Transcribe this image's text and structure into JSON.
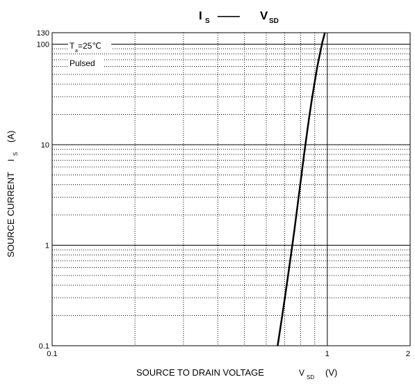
{
  "chart_data": {
    "type": "line",
    "title": {
      "left_main": "I",
      "left_sub": "S",
      "dash": "——",
      "right_main": "V",
      "right_sub": "SD"
    },
    "xlabel": {
      "text": "SOURCE TO DRAIN VOLTAGE",
      "sym": "V",
      "sub": "SD",
      "unit": "(V)"
    },
    "ylabel": {
      "text": "SOURCE CURRENT",
      "sym": "I",
      "sub": "S",
      "unit": "(A)"
    },
    "x_scale": "log",
    "y_scale": "log",
    "xlim": [
      0.1,
      2
    ],
    "ylim": [
      0.1,
      130
    ],
    "x_ticks": [
      {
        "value": 0.1,
        "label": "0.1"
      },
      {
        "value": 1,
        "label": "1"
      },
      {
        "value": 2,
        "label": "2"
      }
    ],
    "y_ticks": [
      {
        "value": 0.1,
        "label": "0.1"
      },
      {
        "value": 1,
        "label": "1"
      },
      {
        "value": 10,
        "label": "10"
      },
      {
        "value": 100,
        "label": "100"
      },
      {
        "value": 130,
        "label": "130"
      }
    ],
    "grid": true,
    "annotations": {
      "temp_main": "T",
      "temp_sub": "a",
      "temp_value": "=25℃",
      "pulsed": "Pulsed"
    },
    "series": [
      {
        "x": [
          0.66,
          0.68,
          0.7,
          0.72,
          0.74,
          0.76,
          0.78,
          0.8,
          0.82,
          0.84,
          0.86,
          0.88,
          0.9,
          0.92,
          0.94,
          0.96,
          0.98
        ],
        "y": [
          0.1,
          0.17,
          0.29,
          0.5,
          0.85,
          1.45,
          2.5,
          4.3,
          7.3,
          12,
          19,
          29,
          42,
          60,
          80,
          105,
          130
        ]
      }
    ],
    "colors": {
      "line": "#000000",
      "grid": "#000000",
      "background": "#ffffff"
    }
  }
}
